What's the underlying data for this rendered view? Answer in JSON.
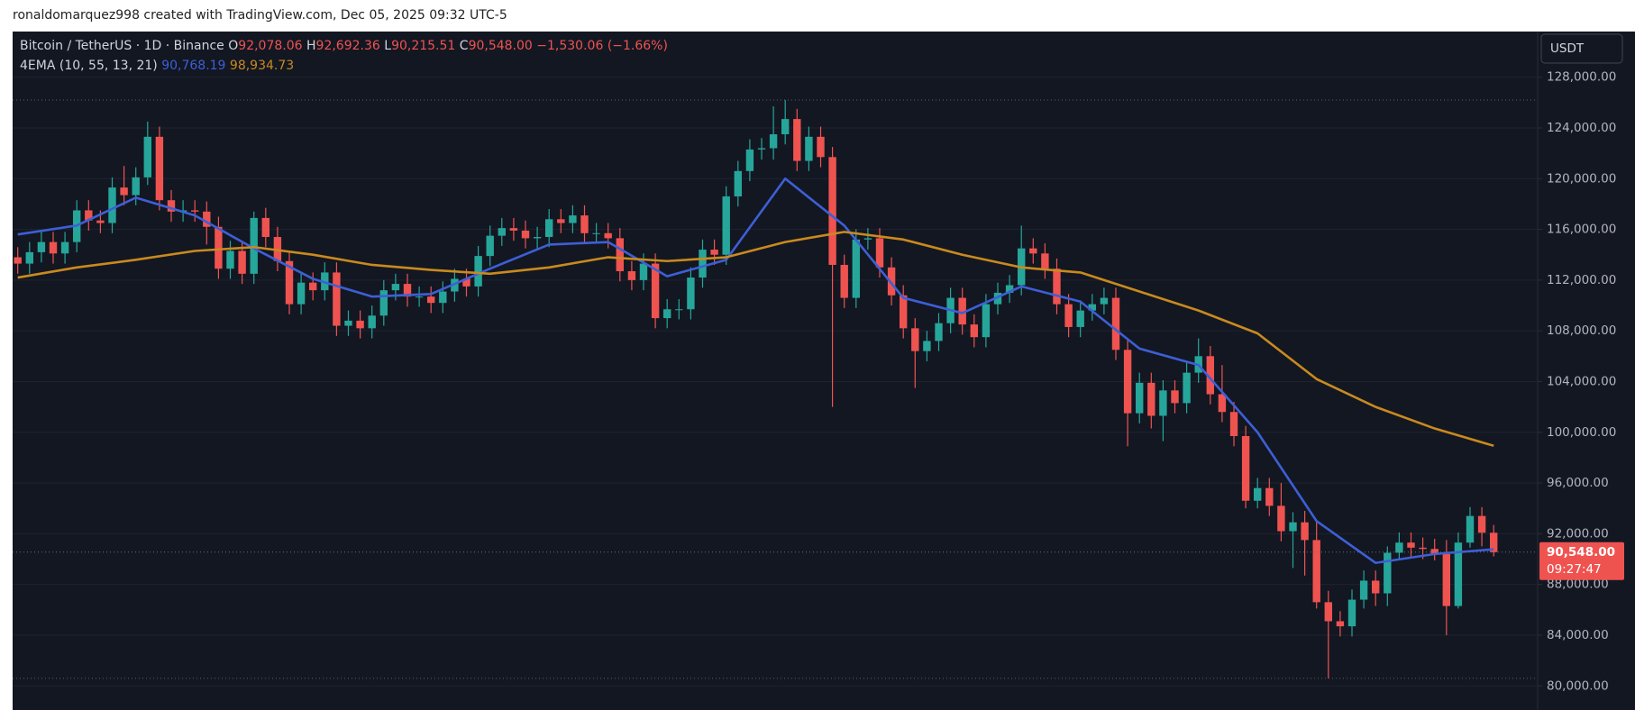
{
  "header": {
    "text": "ronaldomarquez998 created with TradingView.com, Dec 05, 2025 09:32 UTC-5"
  },
  "chart_data": {
    "type": "candlestick",
    "title": "Bitcoin / TetherUS · 1D · Binance",
    "currency": "USDT",
    "up_color": "#26a69a",
    "down_color": "#ef5350",
    "legend_values": [
      {
        "prefix": "O",
        "value": 92078.06,
        "label": "92,078.06"
      },
      {
        "prefix": "H",
        "value": 92692.36,
        "label": "92,692.36"
      },
      {
        "prefix": "L",
        "value": 90215.51,
        "label": "90,215.51"
      },
      {
        "prefix": "C",
        "value": 90548.0,
        "label": "90,548.00"
      }
    ],
    "change": {
      "value": -1530.06,
      "label": "−1,530.06"
    },
    "change_pct": {
      "value": -1.66,
      "label": "(−1.66%)"
    },
    "last_price": {
      "value": 90548.0,
      "label": "90,548.00"
    },
    "countdown": "09:27:47",
    "ylim": [
      78100,
      131600
    ],
    "yticks": [
      {
        "value": 80000,
        "label": "80,000.00"
      },
      {
        "value": 84000,
        "label": "84,000.00"
      },
      {
        "value": 88000,
        "label": "88,000.00"
      },
      {
        "value": 92000,
        "label": "92,000.00"
      },
      {
        "value": 96000,
        "label": "96,000.00"
      },
      {
        "value": 100000,
        "label": "100,000.00"
      },
      {
        "value": 104000,
        "label": "104,000.00"
      },
      {
        "value": 108000,
        "label": "108,000.00"
      },
      {
        "value": 112000,
        "label": "112,000.00"
      },
      {
        "value": 116000,
        "label": "116,000.00"
      },
      {
        "value": 120000,
        "label": "120,000.00"
      },
      {
        "value": 124000,
        "label": "124,000.00"
      },
      {
        "value": 128000,
        "label": "128,000.00"
      }
    ],
    "grid": true,
    "open": [
      113800,
      113300,
      114200,
      115000,
      114100,
      115000,
      117500,
      116700,
      116500,
      119300,
      118700,
      120100,
      123300,
      118300,
      117400,
      117500,
      117400,
      116200,
      112900,
      114300,
      112500,
      116900,
      115400,
      113500,
      110100,
      111800,
      111200,
      112600,
      108400,
      108800,
      108200,
      109200,
      111200,
      111700,
      110700,
      110700,
      110200,
      111100,
      112100,
      111500,
      113900,
      115500,
      116100,
      115900,
      115300,
      115400,
      116800,
      116500,
      117100,
      115700,
      115700,
      115300,
      112700,
      112000,
      113300,
      109000,
      109700,
      109700,
      112200,
      114400,
      114000,
      118600,
      120600,
      122300,
      122400,
      123500,
      124700,
      121400,
      123300,
      121700,
      113200,
      110600,
      115200,
      115300,
      113000,
      110800,
      108200,
      106400,
      107200,
      108600,
      110600,
      108500,
      107500,
      110100,
      111000,
      111600,
      114500,
      114100,
      112900,
      110100,
      108300,
      109600,
      110100,
      110600,
      106500,
      101500,
      103900,
      101300,
      103300,
      102300,
      104700,
      106000,
      103000,
      101600,
      99700,
      94600,
      95600,
      94200,
      92200,
      92900,
      91500,
      86600,
      85100,
      84700,
      86800,
      88300,
      87300,
      90500,
      91300,
      90900,
      90800,
      90400,
      86300,
      91300,
      93400,
      92078.06
    ],
    "high": [
      114600,
      115000,
      115800,
      115800,
      115800,
      118300,
      118300,
      117500,
      120100,
      121000,
      120900,
      124500,
      124100,
      119100,
      118300,
      118300,
      118200,
      117000,
      115100,
      115100,
      117400,
      117700,
      116200,
      114300,
      112600,
      112600,
      113400,
      113400,
      109600,
      109600,
      110000,
      112000,
      112500,
      112500,
      111500,
      111500,
      111900,
      112900,
      112900,
      114700,
      116300,
      116900,
      116900,
      116700,
      116200,
      117600,
      117600,
      117900,
      117900,
      116500,
      116500,
      116100,
      113500,
      114100,
      114100,
      110500,
      110500,
      113000,
      115200,
      115200,
      119400,
      121400,
      123100,
      123200,
      125700,
      126200,
      125500,
      124100,
      124100,
      122500,
      114000,
      116000,
      116100,
      116100,
      113800,
      111600,
      109000,
      108000,
      109400,
      111400,
      111400,
      109300,
      110900,
      111800,
      112400,
      116300,
      115300,
      114900,
      113700,
      110900,
      110400,
      110900,
      111400,
      111400,
      107300,
      104700,
      104700,
      104100,
      104100,
      105500,
      107400,
      106800,
      105300,
      102400,
      100500,
      96400,
      96400,
      96000,
      93700,
      93800,
      93000,
      87500,
      85900,
      87600,
      89100,
      89100,
      91000,
      92100,
      92100,
      91700,
      91600,
      91500,
      92100,
      94100,
      94100,
      92692.36
    ],
    "low": [
      112500,
      112500,
      113400,
      113300,
      113300,
      114200,
      115900,
      115700,
      115700,
      117900,
      117900,
      119500,
      117500,
      116600,
      116600,
      116600,
      114800,
      112100,
      112100,
      111700,
      111700,
      114600,
      112700,
      109300,
      109300,
      110400,
      110400,
      107600,
      107600,
      107400,
      107400,
      108400,
      110400,
      109900,
      109900,
      109400,
      109400,
      110300,
      110700,
      110700,
      113100,
      114700,
      115100,
      114500,
      114500,
      114600,
      115700,
      115700,
      114900,
      114900,
      114500,
      111900,
      111200,
      111200,
      108200,
      108200,
      108900,
      108900,
      111400,
      113200,
      113200,
      117800,
      119800,
      121500,
      121500,
      122700,
      120600,
      120600,
      120900,
      102000,
      109800,
      109800,
      114400,
      112200,
      110000,
      107400,
      103500,
      105600,
      106400,
      107800,
      107700,
      106700,
      106700,
      109300,
      110200,
      110800,
      113300,
      112100,
      109300,
      107500,
      107500,
      108800,
      109300,
      105700,
      98900,
      100700,
      100300,
      99300,
      101500,
      101500,
      103900,
      102200,
      100800,
      98900,
      94000,
      94000,
      93400,
      91400,
      89300,
      88700,
      86100,
      80600,
      83900,
      83900,
      86100,
      86300,
      86300,
      90000,
      90100,
      90000,
      89900,
      84000,
      86100,
      90900,
      91000,
      90215.51
    ],
    "close": [
      113300,
      114200,
      115000,
      114100,
      115000,
      117500,
      116700,
      116500,
      119300,
      118700,
      120100,
      123300,
      118300,
      117400,
      117500,
      117400,
      116200,
      112900,
      114300,
      112500,
      116900,
      115400,
      113500,
      110100,
      111800,
      111200,
      112600,
      108400,
      108800,
      108200,
      109200,
      111200,
      111700,
      110700,
      110700,
      110200,
      111100,
      112100,
      111500,
      113900,
      115500,
      116100,
      115900,
      115300,
      115400,
      116800,
      116500,
      117100,
      115700,
      115700,
      115300,
      112700,
      112000,
      113300,
      109000,
      109700,
      109700,
      112200,
      114400,
      114000,
      118600,
      120600,
      122300,
      122400,
      123500,
      124700,
      121400,
      123300,
      121700,
      113200,
      110600,
      115200,
      115300,
      113000,
      110800,
      108200,
      106400,
      107200,
      108600,
      110600,
      108500,
      107500,
      110100,
      111000,
      111600,
      114500,
      114100,
      112900,
      110100,
      108300,
      109600,
      110100,
      110600,
      106500,
      101500,
      103900,
      101300,
      103300,
      102300,
      104700,
      106000,
      103000,
      101600,
      99700,
      94600,
      95600,
      94200,
      92200,
      92900,
      91500,
      86600,
      85100,
      84700,
      86800,
      88300,
      87300,
      90500,
      91300,
      90900,
      90800,
      90400,
      86300,
      91300,
      93400,
      92078.06,
      90548.0
    ],
    "indicator": {
      "name": "4EMA (10, 55, 13, 21)",
      "series": [
        {
          "color": "#3d5fd6",
          "x": [
            0,
            5,
            10,
            15,
            20,
            25,
            30,
            35,
            40,
            45,
            50,
            55,
            60,
            65,
            70,
            75,
            80,
            85,
            90,
            95,
            100,
            105,
            110,
            115,
            120,
            125
          ],
          "values": [
            115600,
            116300,
            118500,
            117100,
            114500,
            112100,
            110700,
            110900,
            112900,
            114800,
            115000,
            112300,
            113600,
            120000,
            116300,
            110600,
            109400,
            111500,
            110300,
            106600,
            105300,
            100000,
            93000,
            89700,
            90400,
            90768.19
          ],
          "value_label": "90,768.19"
        },
        {
          "color": "#c98a1e",
          "x": [
            0,
            5,
            10,
            15,
            20,
            25,
            30,
            35,
            40,
            45,
            50,
            55,
            60,
            65,
            70,
            75,
            80,
            85,
            90,
            95,
            100,
            105,
            110,
            115,
            120,
            125
          ],
          "values": [
            112200,
            113000,
            113600,
            114300,
            114600,
            114000,
            113200,
            112800,
            112500,
            113000,
            113800,
            113500,
            113800,
            115000,
            115800,
            115200,
            114000,
            113000,
            112600,
            111100,
            109600,
            107800,
            104200,
            102000,
            100300,
            98934.73
          ],
          "value_label": "98,934.73"
        }
      ]
    }
  }
}
